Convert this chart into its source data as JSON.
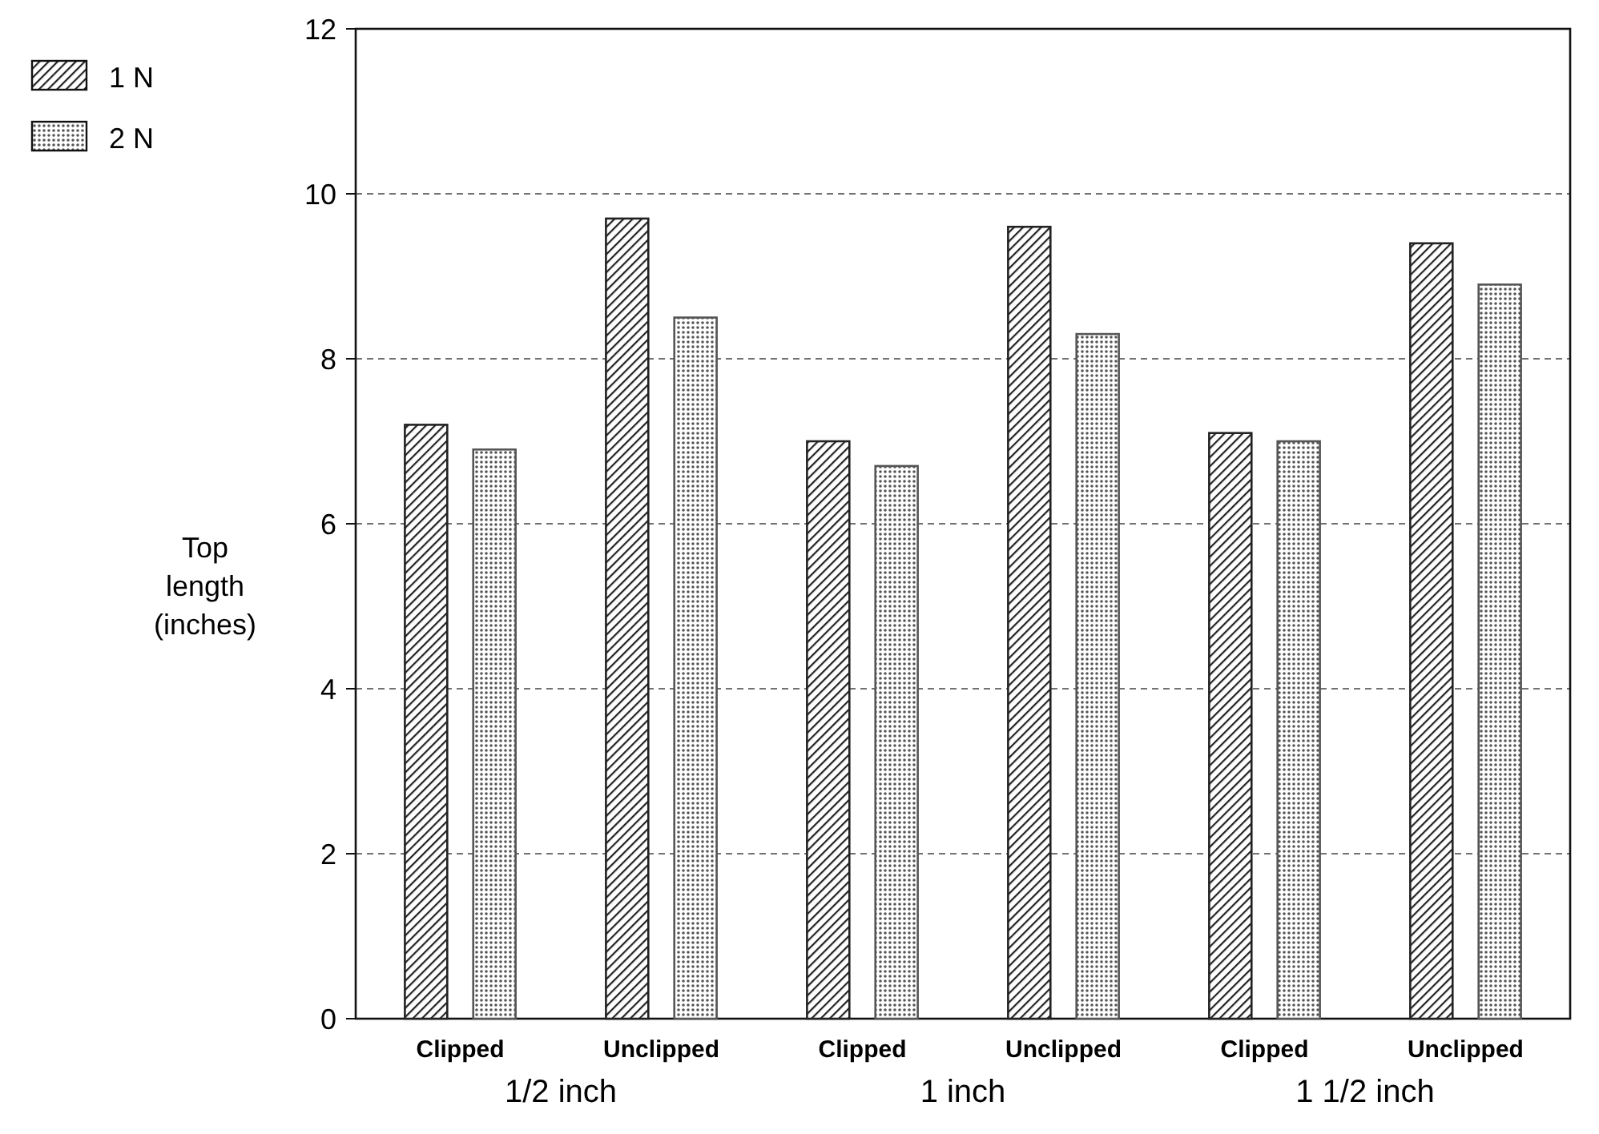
{
  "chart_data": {
    "type": "bar",
    "ylabel": "Top length (inches)",
    "categories": [
      "Clipped",
      "Unclipped",
      "Clipped",
      "Unclipped",
      "Clipped",
      "Unclipped"
    ],
    "annotations": [
      "1/2 inch",
      "1 inch",
      "1 1/2 inch"
    ],
    "series": [
      {
        "name": "1 N",
        "color": "#222222",
        "values": [
          7.2,
          9.7,
          7.0,
          9.6,
          7.1,
          9.4
        ]
      },
      {
        "name": "2 N",
        "color": "#555555",
        "values": [
          6.9,
          8.5,
          6.7,
          8.3,
          7.0,
          8.9
        ]
      }
    ],
    "ylim": [
      0,
      12
    ],
    "yticks": [
      0,
      2,
      4,
      6,
      8,
      10,
      12
    ],
    "grid": "y",
    "legend": "top left"
  }
}
